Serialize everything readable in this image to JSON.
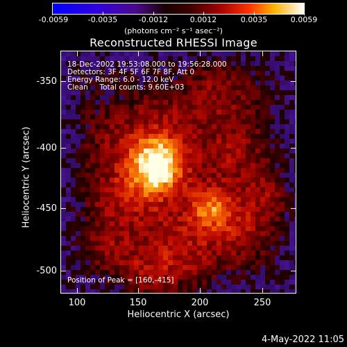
{
  "colorbar": {
    "ticks": [
      "-0.0059",
      "-0.0035",
      "-0.0012",
      "0.0012",
      "0.0035",
      "0.0059"
    ],
    "units": "(photons cm⁻² s⁻¹ asec⁻²)"
  },
  "title": "Reconstructed RHESSI Image",
  "info_lines": [
    "18-Dec-2002 19:53:08.000 to 19:56:28.000",
    "Detectors: 3F 4F 5F 6F 7F 8F, Att 0",
    "Energy Range: 6.0 - 12.0 keV",
    "Clean     Total counts: 9.60E+03"
  ],
  "peak_label": "Position of Peak = [160,-415]",
  "axes": {
    "x_title": "Heliocentric X (arcsec)",
    "y_title": "Heliocentric Y (arcsec)",
    "x_ticks": [
      "100",
      "150",
      "200",
      "250"
    ],
    "y_ticks": [
      "-350",
      "-400",
      "-450",
      "-500"
    ]
  },
  "footer_date": "4-May-2022 11:05",
  "colors": {
    "background": "#000000",
    "text": "#ffffff"
  }
}
